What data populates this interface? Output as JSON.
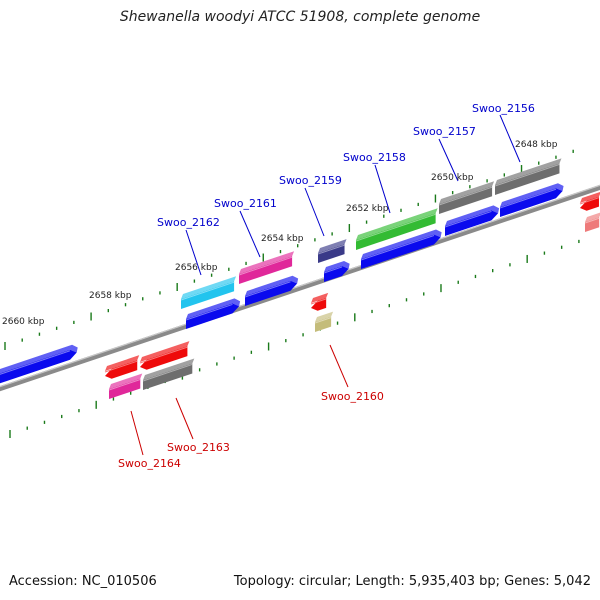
{
  "title": "Shewanella woodyi ATCC 51908, complete genome",
  "footer": {
    "accession": "Accession: NC_010506",
    "summary": "Topology: circular; Length: 5,935,403 bp; Genes: 5,042"
  },
  "scale_labels": [
    "2648 kbp",
    "2650 kbp",
    "2652 kbp",
    "2654 kbp",
    "2656 kbp",
    "2658 kbp",
    "2660 kbp"
  ],
  "gene_labels": [
    {
      "name": "Swoo_2156",
      "color": "#0000cc"
    },
    {
      "name": "Swoo_2157",
      "color": "#0000cc"
    },
    {
      "name": "Swoo_2158",
      "color": "#0000cc"
    },
    {
      "name": "Swoo_2159",
      "color": "#0000cc"
    },
    {
      "name": "Swoo_2161",
      "color": "#0000cc"
    },
    {
      "name": "Swoo_2162",
      "color": "#0000cc"
    },
    {
      "name": "Swoo_2160",
      "color": "#cc0000"
    },
    {
      "name": "Swoo_2163",
      "color": "#cc0000"
    },
    {
      "name": "Swoo_2164",
      "color": "#cc0000"
    }
  ],
  "colors": {
    "backbone": "#8a8a8a",
    "tick": "#1a7a1a",
    "cds_forward": "#0a0aee",
    "cds_reverse": "#ee0a0a",
    "gray_feature": "#6e6e6e",
    "pink_feature": "#e0289a",
    "cyan_feature": "#22c4ee",
    "green_feature": "#33bb33",
    "purple_feature": "#3a3a88",
    "olive_feature": "#c4bc7a",
    "salmon_feature": "#ee7a7a"
  }
}
